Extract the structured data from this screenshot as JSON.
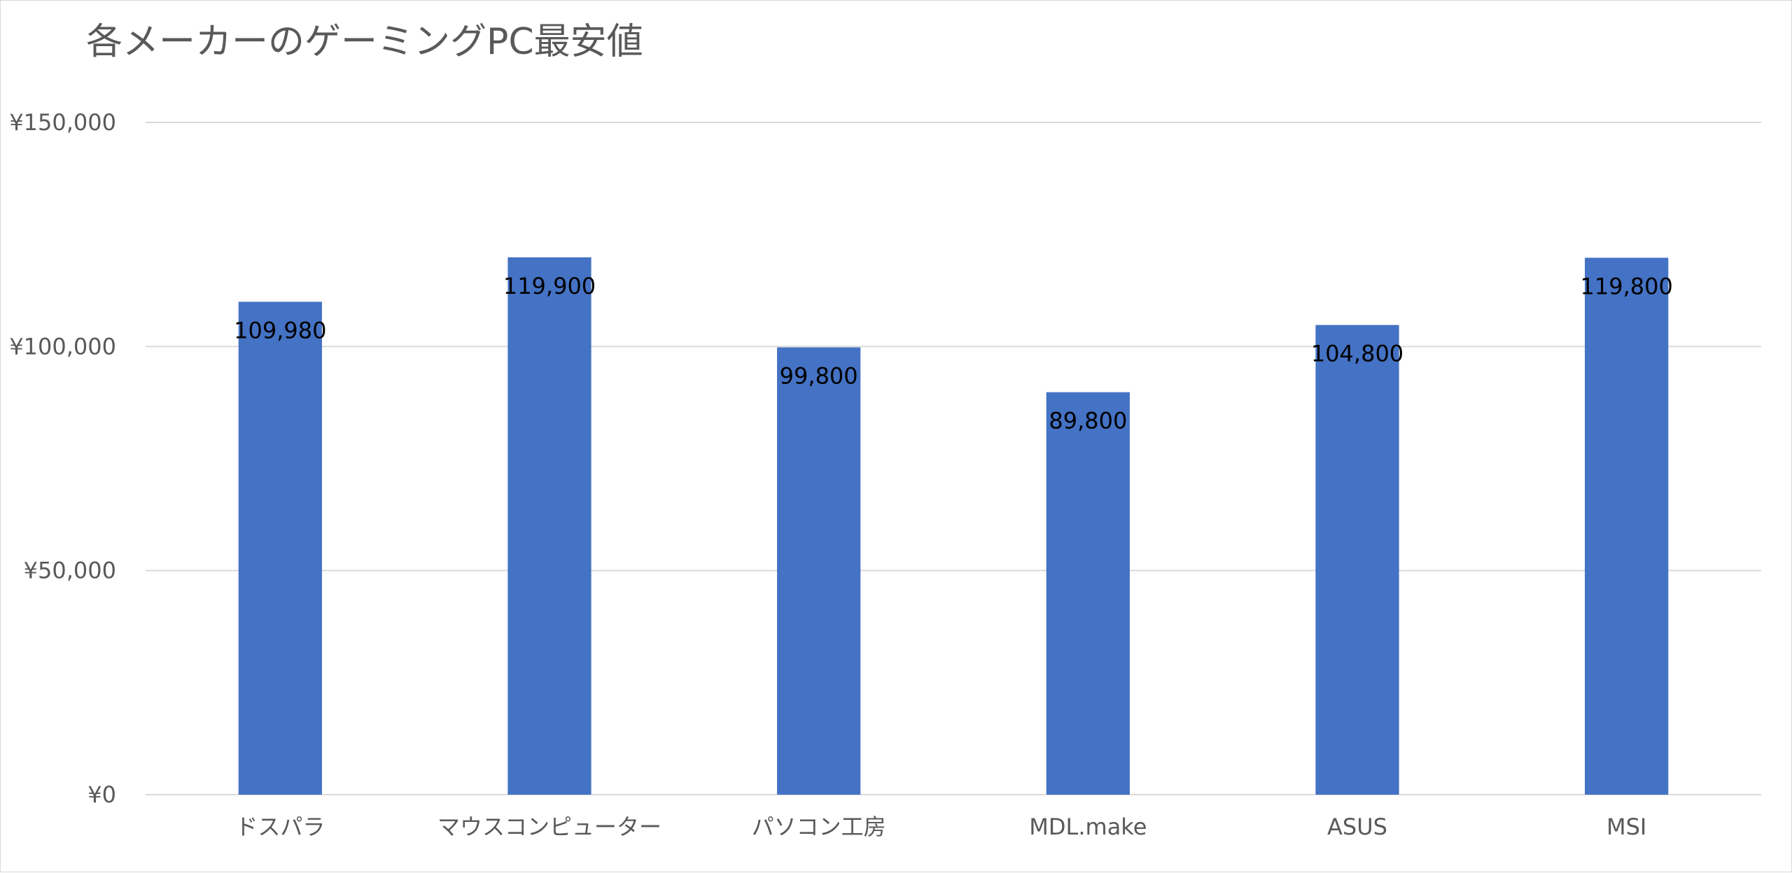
{
  "chart_data": {
    "type": "bar",
    "title": "各メーカーのゲーミングPC最安値",
    "categories": [
      "ドスパラ",
      "マウスコンピューター",
      "パソコン工房",
      "MDL.make",
      "ASUS",
      "MSI"
    ],
    "values": [
      109980,
      119900,
      99800,
      89800,
      104800,
      119800
    ],
    "value_labels": [
      "109,980",
      "119,900",
      "99,800",
      "89,800",
      "104,800",
      "119,800"
    ],
    "y_ticks": [
      0,
      50000,
      100000,
      150000
    ],
    "y_tick_labels": [
      "¥0",
      "¥50,000",
      "¥100,000",
      "¥150,000"
    ],
    "ylim": [
      0,
      150000
    ],
    "grid": true,
    "legend": "none",
    "data_label_position": "inside-end",
    "colors": {
      "bar": "#4472C4",
      "grid": "#d9d9d9",
      "text": "#595959",
      "label": "#000000"
    }
  }
}
